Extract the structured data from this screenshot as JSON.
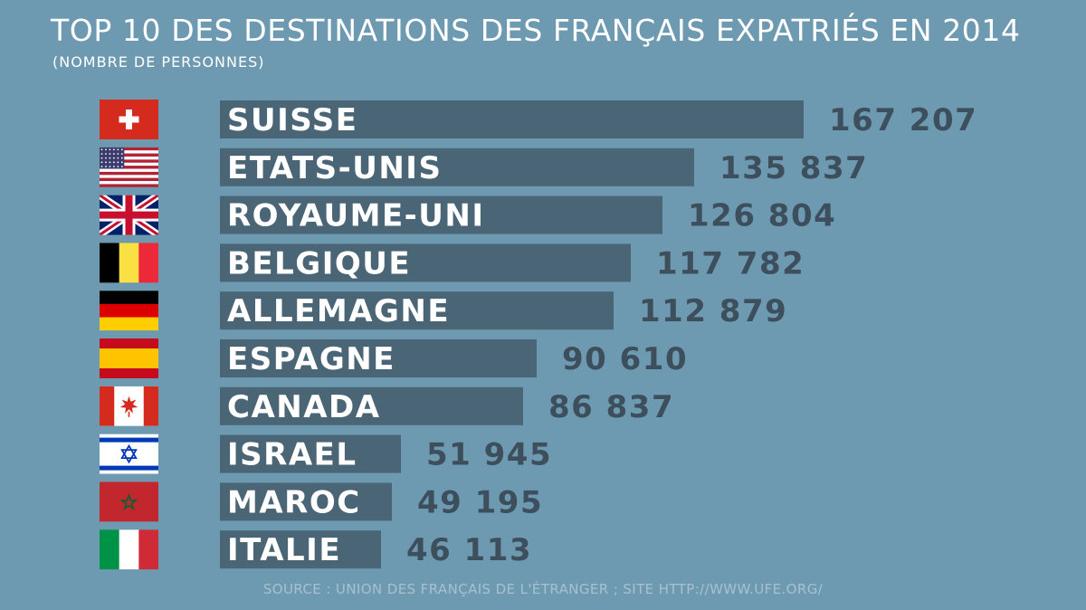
{
  "colors": {
    "background": "#6e9ab1",
    "bar": "#4a6576",
    "category_label": "#ffffff",
    "value_label": "#3d4f5c",
    "source_text": "#a8c0d0"
  },
  "chart_data": {
    "type": "bar",
    "orientation": "horizontal",
    "title": "TOP 10 DES DESTINATIONS DES FRANÇAIS EXPATRIÉS EN 2014",
    "subtitle": "(NOMBRE DE PERSONNES)",
    "source": "SOURCE : UNION DES FRANÇAIS DE L'ÉTRANGER ; SITE HTTP://WWW.UFE.ORG/",
    "categories": [
      "SUISSE",
      "ETATS-UNIS",
      "ROYAUME-UNI",
      "BELGIQUE",
      "ALLEMAGNE",
      "ESPAGNE",
      "CANADA",
      "ISRAEL",
      "MAROC",
      "ITALIE"
    ],
    "values": [
      167207,
      135837,
      126804,
      117782,
      112879,
      90610,
      86837,
      51945,
      49195,
      46113
    ],
    "value_labels": [
      "167 207",
      "135 837",
      "126 804",
      "117 782",
      "112 879",
      "90 610",
      "86 837",
      "51 945",
      "49 195",
      "46 113"
    ],
    "flags": [
      "switzerland-flag",
      "usa-flag",
      "uk-flag",
      "belgium-flag",
      "germany-flag",
      "spain-flag",
      "canada-flag",
      "israel-flag",
      "morocco-flag",
      "italy-flag"
    ],
    "grid": false,
    "legend": "none"
  }
}
